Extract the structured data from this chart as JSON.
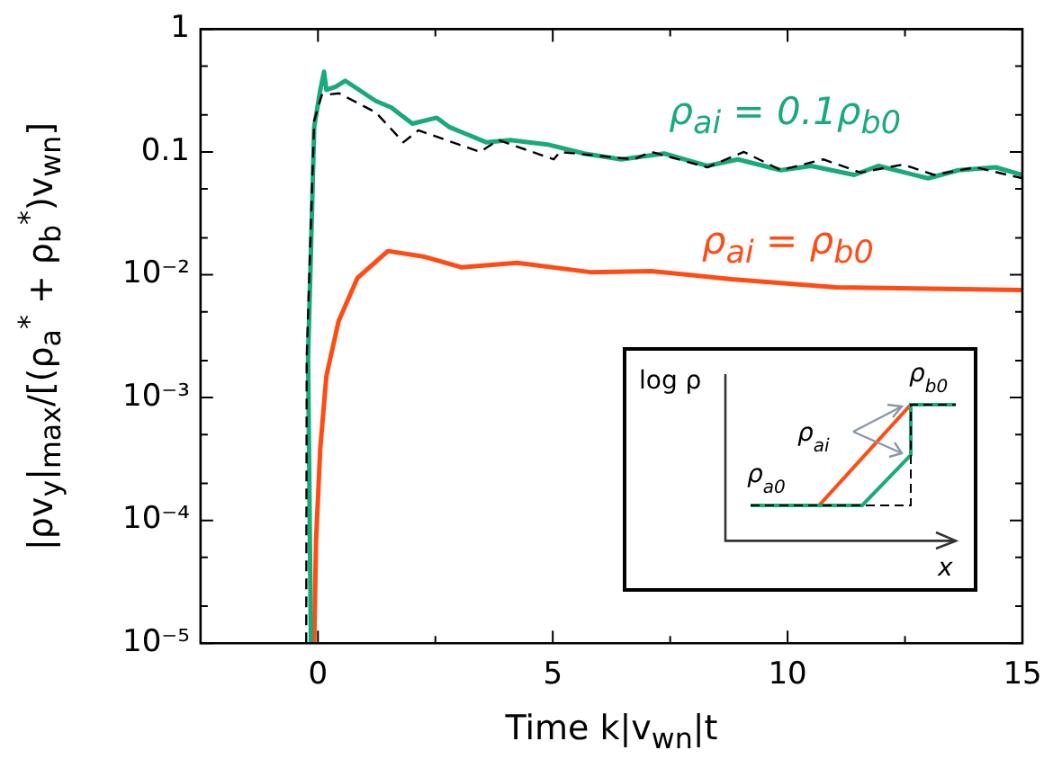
{
  "chart_data": {
    "type": "line",
    "xlabel": "Time k|v$_{wn}$|t",
    "ylabel": "|ρv$_{y}$|$_{max}$/[(ρ$_{a}$$^{*}$ + ρ$_{b}$$^{*}$)v$_{wn}$]",
    "log": "y",
    "xlim": [
      -2.5,
      15
    ],
    "xticks": [
      0,
      {
        "value": 2.5,
        "label": null
      },
      5,
      {
        "value": 7.5,
        "label": null
      },
      10,
      {
        "value": 12.5,
        "label": null
      },
      15
    ],
    "ylim": [
      1e-05,
      1
    ],
    "yticks": [
      {
        "value": 1e-05,
        "label": "10⁻⁵"
      },
      {
        "value": 2e-05,
        "label": null
      },
      {
        "value": 5e-05,
        "label": null
      },
      {
        "value": 0.0001,
        "label": "10⁻⁴"
      },
      {
        "value": 0.0002,
        "label": null
      },
      {
        "value": 0.0005,
        "label": null
      },
      {
        "value": 0.001,
        "label": "10⁻³"
      },
      {
        "value": 0.002,
        "label": null
      },
      {
        "value": 0.005,
        "label": null
      },
      {
        "value": 0.01,
        "label": "10⁻²"
      },
      {
        "value": 0.02,
        "label": null
      },
      {
        "value": 0.05,
        "label": null
      },
      0.1,
      {
        "value": 0.2,
        "label": null
      },
      {
        "value": 0.5,
        "label": null
      },
      1
    ],
    "grid": false,
    "legend": false,
    "marker": "none",
    "line_style": "solid",
    "series": [
      {
        "name": "ρ$_{ai}$ = 0.1ρ$_{b0}$",
        "color": "#1aaa7a",
        "x": [
          -0.15,
          -0.21,
          -0.08,
          0.05,
          0.13,
          0.18,
          0.38,
          0.58,
          1.23,
          1.56,
          2.01,
          2.53,
          2.79,
          3.58,
          4.1,
          4.89,
          5.67,
          6.46,
          7.37,
          8.29,
          8.94,
          9.86,
          10.5,
          11.42,
          11.94,
          12.99,
          13.64,
          14.43,
          15
        ],
        "values": [
          1e-05,
          0.0021,
          0.16,
          0.32,
          0.45,
          0.32,
          0.34,
          0.38,
          0.26,
          0.23,
          0.17,
          0.19,
          0.16,
          0.12,
          0.125,
          0.115,
          0.097,
          0.087,
          0.097,
          0.077,
          0.087,
          0.071,
          0.077,
          0.065,
          0.077,
          0.061,
          0.071,
          0.075,
          0.065
        ]
      },
      {
        "color": "#000000",
        "line_style": "dashed",
        "x": [
          -0.25,
          -0.24,
          -0.08,
          0.08,
          0.45,
          1.23,
          1.82,
          2.14,
          3.45,
          3.84,
          5.02,
          5.15,
          6.72,
          7.1,
          8.29,
          9.07,
          9.86,
          10.76,
          11.55,
          12.46,
          13.12,
          14.0,
          15
        ],
        "values": [
          1e-05,
          0.0021,
          0.18,
          0.29,
          0.3,
          0.21,
          0.12,
          0.15,
          0.1,
          0.125,
          0.087,
          0.1,
          0.087,
          0.1,
          0.075,
          0.1,
          0.071,
          0.087,
          0.068,
          0.079,
          0.065,
          0.075,
          0.061
        ]
      },
      {
        "name": "ρ$_{ai}$ = ρ$_{b0}$",
        "color": "#ff4b14",
        "x": [
          -0.08,
          -0.04,
          0.05,
          0.18,
          0.44,
          0.84,
          1.49,
          2.27,
          3.06,
          4.24,
          5.8,
          7.1,
          8.81,
          11.03,
          15
        ],
        "values": [
          1e-05,
          7e-05,
          0.00039,
          0.0015,
          0.0042,
          0.0094,
          0.0156,
          0.014,
          0.0115,
          0.0125,
          0.0105,
          0.0107,
          0.0092,
          0.0079,
          0.0075
        ]
      }
    ],
    "annotations": [
      "log ρ",
      "ρ$_{ai}$",
      "ρ$_{a0}$",
      "ρ$_{b0}$",
      "x"
    ]
  }
}
